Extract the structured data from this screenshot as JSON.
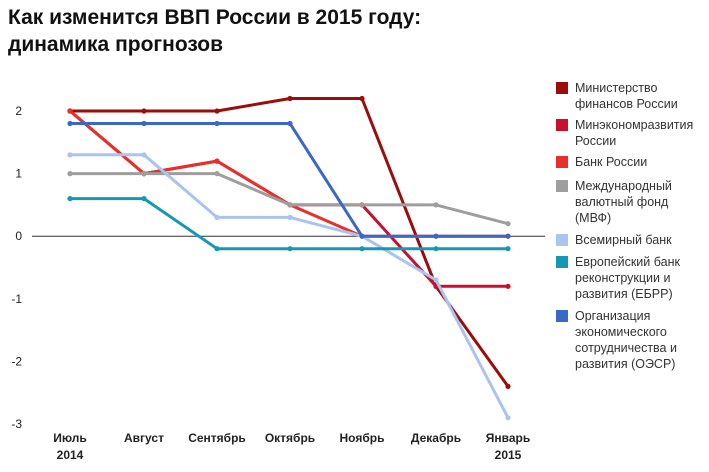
{
  "title": {
    "line1": "Как изменится ВВП России в 2015 году:",
    "line2": "динамика прогнозов"
  },
  "chart_data": {
    "type": "line",
    "categories": [
      {
        "line1": "Июль",
        "line2": "2014"
      },
      {
        "line1": "Август",
        "line2": ""
      },
      {
        "line1": "Сентябрь",
        "line2": ""
      },
      {
        "line1": "Октябрь",
        "line2": ""
      },
      {
        "line1": "Ноябрь",
        "line2": ""
      },
      {
        "line1": "Декабрь",
        "line2": ""
      },
      {
        "line1": "Январь",
        "line2": "2015"
      }
    ],
    "yticks": [
      "2",
      "1",
      "0",
      "-1",
      "-2",
      "-3"
    ],
    "ylim": [
      -3,
      2
    ],
    "grid": false,
    "legend_position": "right",
    "series": [
      {
        "name": "Министерство финансов России",
        "color": "#9b0d0d",
        "values": [
          2,
          2,
          2,
          2.2,
          2.2,
          -0.8,
          -2.4
        ]
      },
      {
        "name": "Минэкономразвития России",
        "color": "#c8102e",
        "values": [
          2,
          1,
          1.2,
          0.5,
          0.5,
          -0.8,
          -0.8
        ]
      },
      {
        "name": "Банк России",
        "color": "#e8302a",
        "values": [
          2,
          1,
          1.2,
          0.5,
          0,
          0,
          0
        ]
      },
      {
        "name": "Международный валютный фонд (МВФ)",
        "color": "#9e9e9e",
        "values": [
          1,
          1,
          1,
          0.5,
          0.5,
          0.5,
          0.2
        ]
      },
      {
        "name": "Всемирный банк",
        "color": "#a9c4ef",
        "values": [
          1.3,
          1.3,
          0.3,
          0.3,
          0,
          -0.7,
          -2.9
        ]
      },
      {
        "name": "Европейский банк реконструкции и развития (ЕБРР)",
        "color": "#1598b5",
        "values": [
          0.6,
          0.6,
          -0.2,
          -0.2,
          -0.2,
          -0.2,
          -0.2
        ]
      },
      {
        "name": "Организация экономического сотрудничества и развития (ОЭСР)",
        "color": "#3a68c8",
        "values": [
          1.8,
          1.8,
          1.8,
          1.8,
          0,
          0,
          0
        ]
      }
    ]
  }
}
